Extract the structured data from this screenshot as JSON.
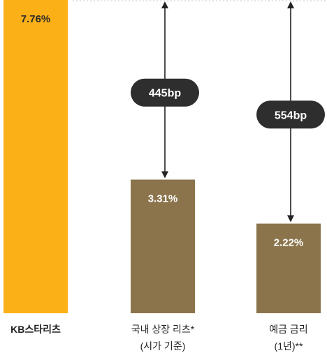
{
  "chart_data": {
    "type": "bar",
    "categories": [
      {
        "lines": [
          "KB스타리츠"
        ],
        "bold": true
      },
      {
        "lines": [
          "국내 상장 리츠*",
          "(시가 기준)"
        ],
        "bold": false
      },
      {
        "lines": [
          "예금 금리",
          "(1년)**"
        ],
        "bold": false
      }
    ],
    "values": [
      7.76,
      3.31,
      2.22
    ],
    "value_labels": [
      "7.76%",
      "3.31%",
      "2.22%"
    ],
    "ylim": [
      0,
      7.76
    ],
    "grid": false,
    "spreads": [
      {
        "from_index": 0,
        "to_index": 1,
        "label": "445bp"
      },
      {
        "from_index": 0,
        "to_index": 2,
        "label": "554bp"
      }
    ],
    "colors": {
      "highlight_bar": "#FBB017",
      "other_bars": "#8B744B",
      "highlight_label": "#2B2B2B",
      "other_label": "#FFFFFF",
      "badge": "#2E2E2E",
      "arrow": "#222222",
      "top_guide": "#C8C8C8"
    }
  }
}
